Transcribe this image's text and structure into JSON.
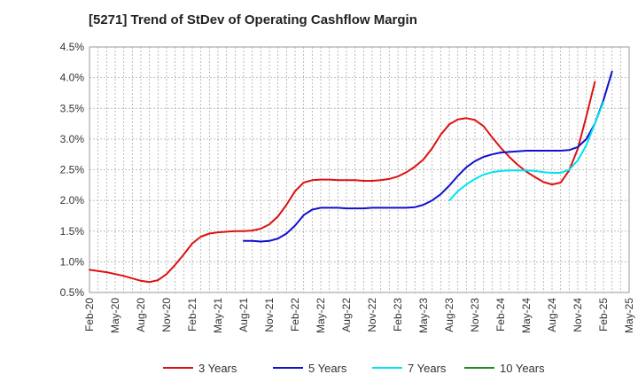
{
  "chart_data": {
    "type": "line",
    "title": "[5271]  Trend of StDev of Operating Cashflow Margin",
    "xlabel": "",
    "ylabel": "",
    "ylim": [
      0.5,
      4.5
    ],
    "y_ticks": [
      "0.5%",
      "1.0%",
      "1.5%",
      "2.0%",
      "2.5%",
      "3.0%",
      "3.5%",
      "4.0%",
      "4.5%"
    ],
    "x_ticks": [
      "Feb-20",
      "May-20",
      "Aug-20",
      "Nov-20",
      "Feb-21",
      "May-21",
      "Aug-21",
      "Nov-21",
      "Feb-22",
      "May-22",
      "Aug-22",
      "Nov-22",
      "Feb-23",
      "May-23",
      "Aug-23",
      "Nov-23",
      "Feb-24",
      "May-24",
      "Aug-24",
      "Nov-24",
      "Feb-25",
      "May-25"
    ],
    "grid": true,
    "legend_position": "bottom",
    "series": [
      {
        "name": "3 Years",
        "color": "#dd1111",
        "start": "Feb-20",
        "values": [
          0.87,
          0.85,
          0.83,
          0.8,
          0.77,
          0.73,
          0.69,
          0.67,
          0.7,
          0.8,
          0.95,
          1.12,
          1.3,
          1.41,
          1.46,
          1.48,
          1.49,
          1.5,
          1.5,
          1.51,
          1.54,
          1.61,
          1.74,
          1.93,
          2.15,
          2.29,
          2.33,
          2.34,
          2.34,
          2.33,
          2.33,
          2.33,
          2.32,
          2.32,
          2.33,
          2.35,
          2.39,
          2.46,
          2.55,
          2.67,
          2.85,
          3.07,
          3.24,
          3.32,
          3.34,
          3.31,
          3.21,
          3.03,
          2.86,
          2.71,
          2.58,
          2.47,
          2.38,
          2.3,
          2.26,
          2.29,
          2.49,
          2.84,
          3.37,
          3.93
        ]
      },
      {
        "name": "5 Years",
        "color": "#1111cc",
        "start": "Aug-21",
        "values": [
          1.34,
          1.34,
          1.33,
          1.34,
          1.38,
          1.46,
          1.59,
          1.76,
          1.85,
          1.88,
          1.88,
          1.88,
          1.87,
          1.87,
          1.87,
          1.88,
          1.88,
          1.88,
          1.88,
          1.88,
          1.89,
          1.93,
          2.0,
          2.1,
          2.24,
          2.4,
          2.54,
          2.64,
          2.71,
          2.75,
          2.78,
          2.79,
          2.8,
          2.81,
          2.81,
          2.81,
          2.81,
          2.81,
          2.82,
          2.87,
          3.0,
          3.25,
          3.63,
          4.1
        ]
      },
      {
        "name": "7 Years",
        "color": "#00e5ee",
        "start": "Aug-23",
        "values": [
          2.0,
          2.15,
          2.26,
          2.35,
          2.42,
          2.46,
          2.48,
          2.49,
          2.49,
          2.49,
          2.48,
          2.46,
          2.45,
          2.45,
          2.5,
          2.65,
          2.9,
          3.25,
          3.6
        ]
      },
      {
        "name": "10 Years",
        "color": "#228b22",
        "start": "Feb-25",
        "values": []
      }
    ]
  }
}
